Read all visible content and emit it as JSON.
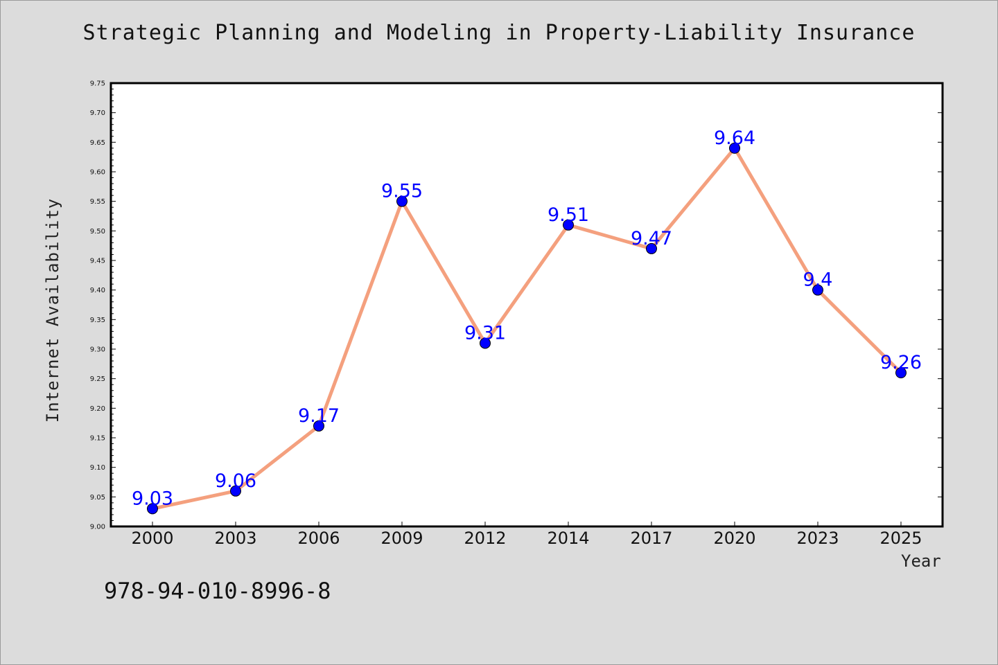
{
  "chart_data": {
    "type": "line",
    "title": "Strategic Planning and Modeling in Property-Liability Insurance",
    "xlabel": "Year",
    "ylabel": "Internet Availability",
    "categories": [
      "2000",
      "2003",
      "2006",
      "2009",
      "2012",
      "2014",
      "2017",
      "2020",
      "2023",
      "2025"
    ],
    "series": [
      {
        "values": [
          9.03,
          9.06,
          9.17,
          9.55,
          9.31,
          9.51,
          9.47,
          9.64,
          9.4,
          9.26
        ],
        "labels": [
          "9.03",
          "9.06",
          "9.17",
          "9.55",
          "9.31",
          "9.51",
          "9.47",
          "9.64",
          "9.4",
          "9.26"
        ]
      }
    ],
    "ylim": [
      9.0,
      9.75
    ],
    "yticks": [
      "9.00",
      "9.05",
      "9.10",
      "9.15",
      "9.20",
      "9.25",
      "9.30",
      "9.35",
      "9.40",
      "9.45",
      "9.50",
      "9.55",
      "9.60",
      "9.65",
      "9.70",
      "9.75"
    ],
    "grid": false,
    "line_color": "#f4a07e",
    "marker_color": "#0000ff",
    "label_color": "#0000ff"
  },
  "footer": {
    "isbn": "978-94-010-8996-8"
  }
}
